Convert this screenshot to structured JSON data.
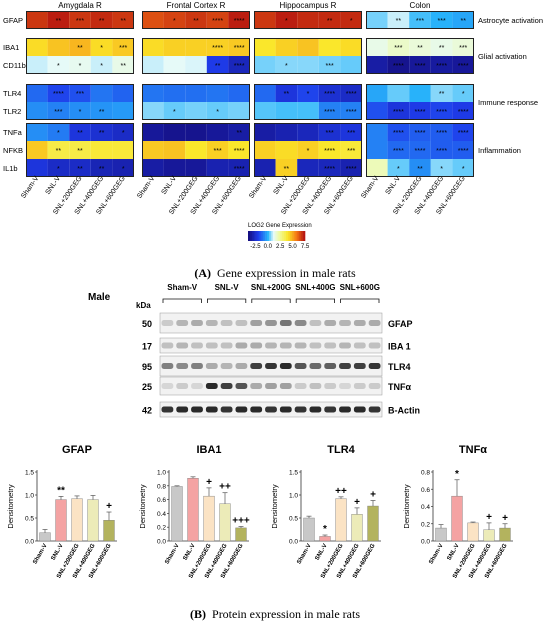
{
  "heatmap": {
    "regions": [
      "Amygdala R",
      "Frontal Cortex R",
      "Hippocampus R",
      "Colon"
    ],
    "groups": [
      "Sham-V",
      "SNL-V",
      "SNL+200GEG",
      "SNL+400GEG",
      "SNL+600GEG"
    ],
    "blocks": [
      {
        "label": "Astrocyte activation",
        "genes": [
          "GFAP"
        ]
      },
      {
        "label": "Glial activation",
        "genes": [
          "IBA1",
          "CD11b"
        ]
      },
      {
        "label": "Immune response",
        "genes": [
          "TLR4",
          "TLR2"
        ]
      },
      {
        "label": "Inflammation",
        "genes": [
          "TNFa",
          "NFKB",
          "IL1b"
        ]
      }
    ],
    "values": [
      [
        [
          [
            6.8,
            7.2,
            6.8,
            7.0,
            6.8
          ]
        ],
        [
          [
            4.2,
            4.6,
            4.8,
            4.2,
            4.5
          ],
          [
            1.0,
            1.2,
            1.3,
            1.0,
            1.4
          ]
        ],
        [
          [
            -1.2,
            -1.8,
            -1.6,
            -1.0,
            -1.3
          ],
          [
            -0.6,
            -0.8,
            -0.6,
            -0.5,
            -0.4
          ]
        ],
        [
          [
            -0.6,
            -0.9,
            -2.2,
            -2.4,
            -2.6
          ],
          [
            4.5,
            3.6,
            3.6,
            3.8,
            3.8
          ],
          [
            -2.2,
            -2.6,
            -2.6,
            -2.9,
            -3.0
          ]
        ]
      ],
      [
        [
          [
            6.4,
            6.6,
            6.8,
            6.6,
            7.2
          ]
        ],
        [
          [
            4.2,
            4.4,
            4.4,
            4.4,
            4.5
          ],
          [
            1.0,
            1.2,
            1.1,
            -2.0,
            -2.8
          ]
        ],
        [
          [
            -1.0,
            -1.1,
            -1.1,
            -1.0,
            -1.2
          ],
          [
            0.6,
            0.4,
            0.5,
            0.4,
            0.5
          ]
        ],
        [
          [
            -3.4,
            -3.6,
            -3.6,
            -3.4,
            -3.2
          ],
          [
            4.5,
            4.6,
            4.0,
            4.4,
            4.0
          ],
          [
            -3.2,
            -3.4,
            -3.4,
            -3.0,
            -3.0
          ]
        ]
      ],
      [
        [
          [
            6.8,
            7.2,
            7.0,
            7.0,
            7.0
          ]
        ],
        [
          [
            4.0,
            4.4,
            4.6,
            4.0,
            4.2
          ],
          [
            0.5,
            0.6,
            0.6,
            0.5,
            0.4
          ]
        ],
        [
          [
            -1.2,
            -2.2,
            -1.8,
            -2.4,
            -2.6
          ],
          [
            0.3,
            0.2,
            0.2,
            -0.8,
            -0.8
          ]
        ],
        [
          [
            -3.2,
            -3.0,
            -2.8,
            -2.4,
            -2.2
          ],
          [
            4.4,
            4.2,
            4.4,
            4.0,
            3.8
          ],
          [
            -3.0,
            4.4,
            -2.8,
            -2.8,
            -3.0
          ]
        ]
      ],
      [
        [
          [
            0.5,
            1.0,
            0.2,
            0.0,
            -0.2
          ]
        ],
        [
          [
            1.4,
            1.8,
            1.6,
            1.4,
            1.6
          ],
          [
            -3.2,
            -3.6,
            -3.4,
            -3.3,
            -3.4
          ]
        ],
        [
          [
            -0.2,
            0.4,
            0.0,
            0.6,
            0.4
          ],
          [
            -1.6,
            -2.2,
            -2.0,
            -1.8,
            -2.0
          ]
        ],
        [
          [
            -0.8,
            -1.6,
            -1.4,
            -1.4,
            -1.8
          ],
          [
            -0.8,
            -1.2,
            -1.2,
            -1.4,
            -1.4
          ],
          [
            2.0,
            0.4,
            -0.6,
            0.6,
            0.4
          ]
        ]
      ]
    ],
    "stars": [
      [
        [
          [
            "",
            "**",
            "***",
            "**",
            "**"
          ]
        ],
        [
          [
            "",
            "",
            "**",
            "*",
            "***"
          ],
          [
            "",
            "*",
            "*",
            "*",
            "**"
          ]
        ],
        [
          [
            "",
            "****",
            "***",
            "",
            ""
          ],
          [
            "",
            "***",
            "*",
            "**",
            ""
          ]
        ],
        [
          [
            "",
            "*",
            "**",
            "**",
            "*"
          ],
          [
            "",
            "**",
            "**",
            "",
            ""
          ],
          [
            "",
            "*",
            "**",
            "**",
            "*"
          ]
        ]
      ],
      [
        [
          [
            "",
            "*",
            "**",
            "****",
            "****"
          ]
        ],
        [
          [
            "",
            "",
            "",
            "****",
            "****"
          ],
          [
            "",
            "",
            "",
            "**",
            "****"
          ]
        ],
        [
          [
            "",
            "",
            "",
            "",
            ""
          ],
          [
            "",
            "*",
            "",
            "*",
            ""
          ]
        ],
        [
          [
            "",
            "",
            "",
            "",
            "**"
          ],
          [
            "",
            "",
            "",
            "***",
            "****"
          ],
          [
            "",
            "",
            "",
            "",
            "****"
          ]
        ]
      ],
      [
        [
          [
            "",
            "*",
            "",
            "**",
            "*"
          ]
        ],
        [
          [
            "",
            "",
            "",
            "",
            ""
          ],
          [
            "",
            "*",
            "",
            "***",
            ""
          ]
        ],
        [
          [
            "",
            "**",
            "*",
            "****",
            "****"
          ],
          [
            "",
            "",
            "",
            "****",
            "****"
          ]
        ],
        [
          [
            "",
            "",
            "",
            "***",
            "***"
          ],
          [
            "",
            "",
            "*",
            "****",
            "***"
          ],
          [
            "",
            "**",
            "",
            "****",
            "****"
          ]
        ]
      ],
      [
        [
          [
            "",
            "**",
            "***",
            "***",
            "**"
          ]
        ],
        [
          [
            "",
            "***",
            "**",
            "**",
            "***"
          ],
          [
            "",
            "****",
            "****",
            "****",
            "****"
          ]
        ],
        [
          [
            "",
            "",
            "",
            "**",
            "*"
          ],
          [
            "",
            "****",
            "****",
            "****",
            "****"
          ]
        ],
        [
          [
            "",
            "****",
            "****",
            "****",
            "****"
          ],
          [
            "",
            "****",
            "****",
            "****",
            "****"
          ],
          [
            "",
            "*",
            "**",
            "*",
            "*"
          ]
        ]
      ]
    ]
  },
  "colorbar": {
    "title": "LOG2 Gene Expression",
    "min": -4,
    "max": 7.5,
    "ticks": [
      -2.5,
      0.0,
      2.5,
      5.0,
      7.5
    ]
  },
  "caption_a": {
    "letter": "(A)",
    "text": "Gene expression in male rats"
  },
  "blot": {
    "sex_label": "Male",
    "kda_label": "kDa",
    "lanes": [
      "Sham-V",
      "SNL-V",
      "SNL+200G",
      "SNL+400G",
      "SNL+600G"
    ],
    "rows": [
      {
        "kda": "50",
        "protein": "GFAP"
      },
      {
        "kda": "17",
        "protein": "IBA 1"
      },
      {
        "kda": "95",
        "protein": "TLR4"
      },
      {
        "kda": "25",
        "protein": "TNFα"
      },
      {
        "kda": "42",
        "protein": "B-Actin"
      }
    ]
  },
  "chart_data": [
    {
      "type": "bar",
      "title": "GFAP",
      "ylabel": "Densitometry",
      "ylim": [
        0,
        1.5
      ],
      "yticks": [
        0.0,
        0.5,
        1.0,
        1.5
      ],
      "categories": [
        "Sham-V",
        "SNL-V",
        "SNL+200GEG",
        "SNL+400GEG",
        "SNL+600GEG"
      ],
      "values": [
        0.18,
        0.9,
        0.92,
        0.9,
        0.45
      ],
      "errors": [
        0.07,
        0.07,
        0.06,
        0.09,
        0.18
      ],
      "annotations": [
        "",
        "**",
        "",
        "",
        "+"
      ],
      "colors": [
        "#c8c8c8",
        "#f4a3a3",
        "#fbe3c4",
        "#ecebb8",
        "#b3b35e"
      ]
    },
    {
      "type": "bar",
      "title": "IBA1",
      "ylabel": "Densitometry",
      "ylim": [
        0,
        1.0
      ],
      "yticks": [
        0.0,
        0.2,
        0.4,
        0.6,
        0.8,
        1.0
      ],
      "categories": [
        "Sham-V",
        "SNL-V",
        "SNL+200GEG",
        "SNL+400GEG",
        "SNL+600GEG"
      ],
      "values": [
        0.79,
        0.91,
        0.65,
        0.54,
        0.19
      ],
      "errors": [
        0.01,
        0.02,
        0.12,
        0.16,
        0.02
      ],
      "annotations": [
        "",
        "",
        "+",
        "++",
        "+++"
      ],
      "colors": [
        "#c8c8c8",
        "#f4a3a3",
        "#fbe3c4",
        "#ecebb8",
        "#b3b35e"
      ]
    },
    {
      "type": "bar",
      "title": "TLR4",
      "ylabel": "Densitometry",
      "ylim": [
        0,
        1.5
      ],
      "yticks": [
        0.0,
        0.5,
        1.0,
        1.5
      ],
      "categories": [
        "Sham-V",
        "SNL-V",
        "SNL+200GEG",
        "SNL+400GEG",
        "SNL+600GEG"
      ],
      "values": [
        0.5,
        0.1,
        0.92,
        0.58,
        0.76
      ],
      "errors": [
        0.04,
        0.03,
        0.04,
        0.14,
        0.12
      ],
      "annotations": [
        "",
        "*",
        "++",
        "+",
        "+"
      ],
      "colors": [
        "#c8c8c8",
        "#f4a3a3",
        "#fbe3c4",
        "#ecebb8",
        "#b3b35e"
      ]
    },
    {
      "type": "bar",
      "title": "TNFα",
      "ylabel": "Densitometry",
      "ylim": [
        0,
        0.8
      ],
      "yticks": [
        0.0,
        0.2,
        0.4,
        0.6,
        0.8
      ],
      "categories": [
        "Sham-V",
        "SNL-V",
        "SNL+200GEG",
        "SNL+400GEG",
        "SNL+600GEG"
      ],
      "values": [
        0.15,
        0.52,
        0.21,
        0.13,
        0.15
      ],
      "errors": [
        0.04,
        0.19,
        0.01,
        0.08,
        0.05
      ],
      "annotations": [
        "",
        "*",
        "",
        "+",
        "+"
      ],
      "colors": [
        "#c8c8c8",
        "#f4a3a3",
        "#fbe3c4",
        "#ecebb8",
        "#b3b35e"
      ]
    }
  ],
  "caption_b": {
    "letter": "(B)",
    "text": "Protein expression in male rats"
  }
}
